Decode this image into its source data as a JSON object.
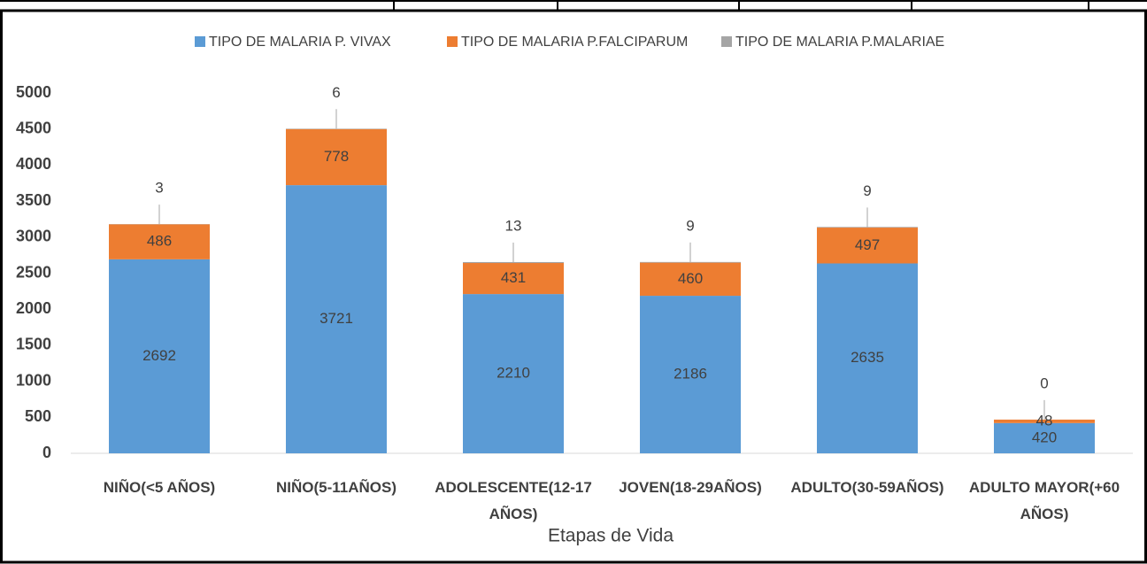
{
  "chart_data": {
    "type": "stacked_bar",
    "x_label": "Etapas de Vida",
    "categories": [
      "NIÑO(<5 AÑOS)",
      "NIÑO(5-11AÑOS)",
      "ADOLESCENTE(12-17 AÑOS)",
      "JOVEN(18-29AÑOS)",
      "ADULTO(30-59AÑOS)",
      "ADULTO MAYOR(+60 AÑOS)"
    ],
    "series": [
      {
        "name": "TIPO DE MALARIA P. VIVAX",
        "color": "#5b9bd5",
        "values": [
          2692,
          3721,
          2210,
          2186,
          2635,
          420
        ]
      },
      {
        "name": "TIPO DE MALARIA P.FALCIPARUM",
        "color": "#ed7d31",
        "values": [
          486,
          778,
          431,
          460,
          497,
          48
        ]
      },
      {
        "name": "TIPO DE MALARIA P.MALARIAE",
        "color": "#a5a5a5",
        "values": [
          3,
          6,
          13,
          9,
          9,
          0
        ]
      }
    ],
    "ylim": [
      0,
      5000
    ],
    "yticks": [
      0,
      500,
      1000,
      1500,
      2000,
      2500,
      3000,
      3500,
      4000,
      4500,
      5000
    ],
    "grid": false,
    "legend": "top"
  }
}
